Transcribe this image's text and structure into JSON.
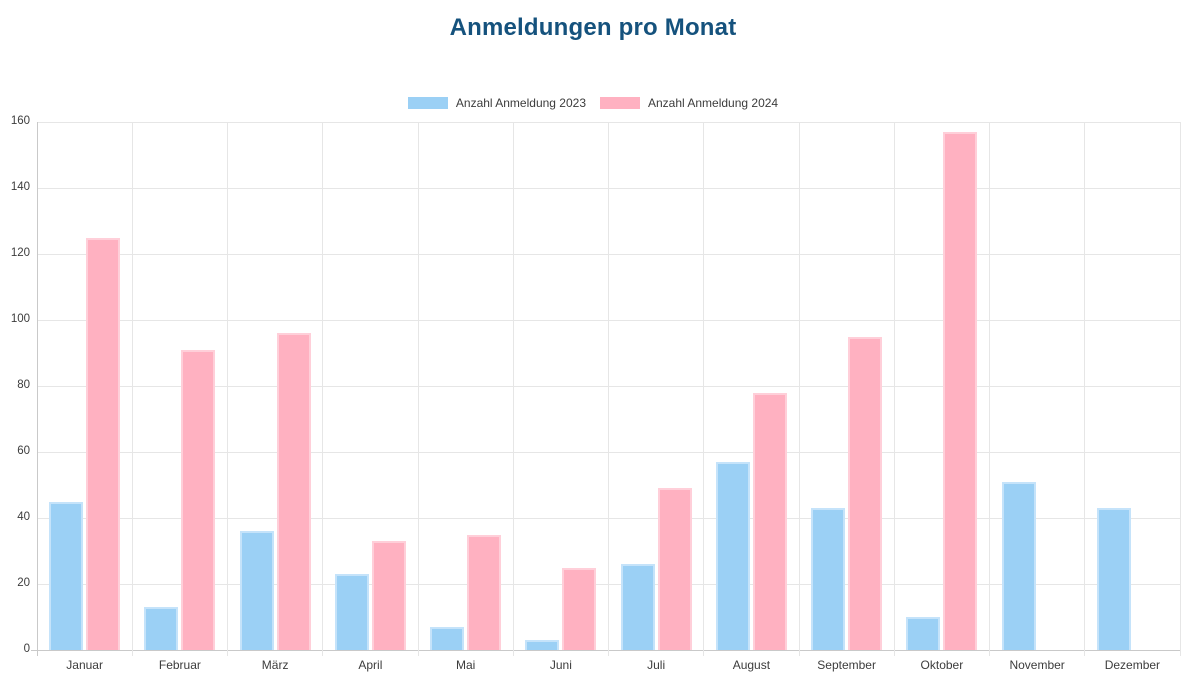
{
  "chart": {
    "title_color": "#15527d",
    "grid_color": "#e6e6e6",
    "axis_color": "#c9c9c9",
    "tick_color": "#3c3c3c"
  },
  "chart_data": {
    "type": "bar",
    "title": "Anmeldungen pro Monat",
    "categories": [
      "Januar",
      "Februar",
      "März",
      "April",
      "Mai",
      "Juni",
      "Juli",
      "August",
      "September",
      "Oktober",
      "November",
      "Dezember"
    ],
    "series": [
      {
        "name": "Anzahl Anmeldung 2023",
        "color": "#9bd0f5",
        "border_color": "#c5e3fa",
        "values": [
          45,
          13,
          36,
          23,
          7,
          3,
          26,
          57,
          43,
          10,
          51,
          43
        ]
      },
      {
        "name": "Anzahl Anmeldung 2024",
        "color": "#ffb1c1",
        "border_color": "#ffcfd9",
        "values": [
          125,
          91,
          96,
          33,
          35,
          25,
          49,
          78,
          95,
          157,
          null,
          null
        ]
      }
    ],
    "xlabel": "",
    "ylabel": "",
    "ylim": [
      0,
      160
    ],
    "yticks": [
      0,
      20,
      40,
      60,
      80,
      100,
      120,
      140,
      160
    ],
    "grid": true,
    "legend_position": "top"
  }
}
